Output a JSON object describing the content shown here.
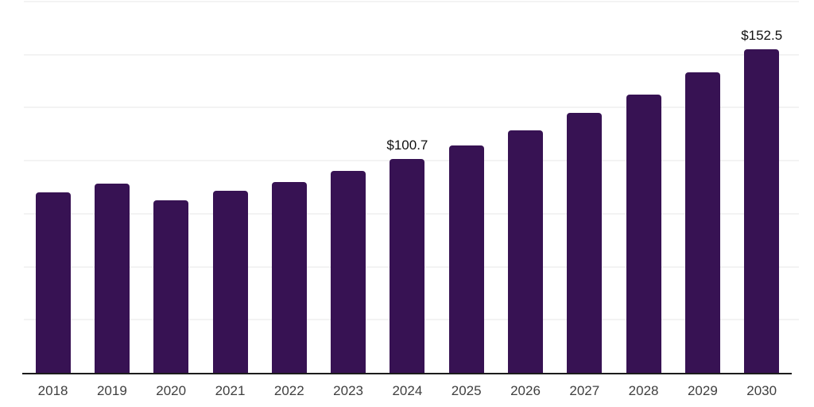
{
  "chart_data": {
    "type": "bar",
    "title": "",
    "xlabel": "",
    "ylabel": "",
    "categories": [
      "2018",
      "2019",
      "2020",
      "2021",
      "2022",
      "2023",
      "2024",
      "2025",
      "2026",
      "2027",
      "2028",
      "2029",
      "2030"
    ],
    "values": [
      85.1,
      89.1,
      81.4,
      85.9,
      90.1,
      95.3,
      100.7,
      107.2,
      114.3,
      122.6,
      131.3,
      141.7,
      152.5
    ],
    "bar_labels": [
      "",
      "",
      "",
      "",
      "",
      "",
      "$100.7",
      "",
      "",
      "",
      "",
      "",
      "$152.5"
    ],
    "ylim": [
      0,
      175
    ],
    "grid_step": 25,
    "grid": "horizontal, unlabeled",
    "legend": "none",
    "colors": {
      "bar": "#371253",
      "gridline": "#f3f3f3",
      "axis_line": "#1c1c1c",
      "tick_label": "#3f3f3f",
      "data_label": "#111111",
      "background": "#ffffff"
    }
  }
}
